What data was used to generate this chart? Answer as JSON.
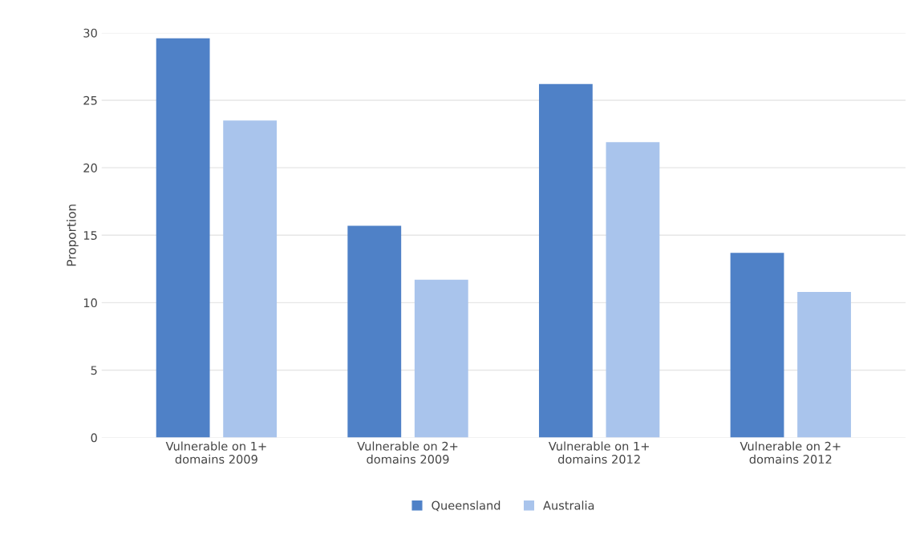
{
  "chart_data": {
    "type": "bar",
    "ylabel": "Proportion",
    "categories": [
      "Vulnerable on 1+\ndomains 2009",
      "Vulnerable on 2+\ndomains 2009",
      "Vulnerable on 1+\ndomains 2012",
      "Vulnerable on 2+\ndomains 2012"
    ],
    "series": [
      {
        "name": "Queensland",
        "color": "#4f81c7",
        "values": [
          29.6,
          15.7,
          26.2,
          13.7
        ]
      },
      {
        "name": "Australia",
        "color": "#a9c4ec",
        "values": [
          23.5,
          11.7,
          21.9,
          10.8
        ]
      }
    ],
    "ylim": [
      0,
      30
    ],
    "yticks": [
      0,
      5,
      10,
      15,
      20,
      25,
      30
    ],
    "grid": "y",
    "legend": "bottom"
  }
}
